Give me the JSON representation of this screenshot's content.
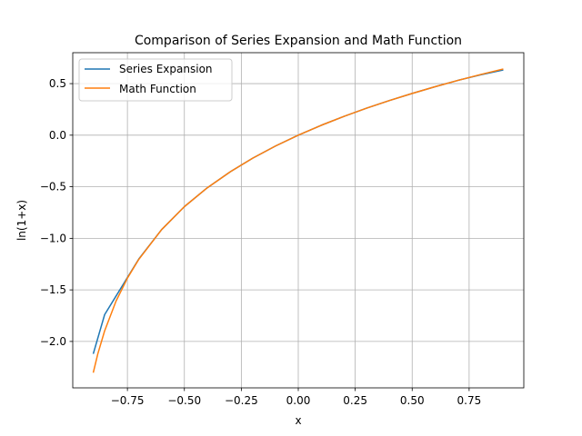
{
  "chart_data": {
    "type": "line",
    "title": "Comparison of Series Expansion and Math Function",
    "xlabel": "x",
    "ylabel": "ln(1+x)",
    "xlim": [
      -0.99,
      0.99
    ],
    "ylim": [
      -2.45,
      0.8
    ],
    "grid": true,
    "legend_position": "top-left",
    "x_ticks": [
      {
        "value": -0.75,
        "label": "−0.75"
      },
      {
        "value": -0.5,
        "label": "−0.50"
      },
      {
        "value": -0.25,
        "label": "−0.25"
      },
      {
        "value": 0.0,
        "label": "0.00"
      },
      {
        "value": 0.25,
        "label": "0.25"
      },
      {
        "value": 0.5,
        "label": "0.50"
      },
      {
        "value": 0.75,
        "label": "0.75"
      }
    ],
    "y_ticks": [
      {
        "value": 0.5,
        "label": "0.5"
      },
      {
        "value": 0.0,
        "label": "0.0"
      },
      {
        "value": -0.5,
        "label": "−0.5"
      },
      {
        "value": -1.0,
        "label": "−1.0"
      },
      {
        "value": -1.5,
        "label": "−1.5"
      },
      {
        "value": -2.0,
        "label": "−2.0"
      }
    ],
    "series": [
      {
        "name": "Series Expansion",
        "color": "#1f77b4",
        "x": [
          -0.9,
          -0.85,
          -0.8,
          -0.75,
          -0.7,
          -0.6,
          -0.5,
          -0.4,
          -0.3,
          -0.2,
          -0.1,
          0.0,
          0.1,
          0.2,
          0.3,
          0.4,
          0.5,
          0.6,
          0.7,
          0.8,
          0.9
        ],
        "y": [
          -2.12,
          -1.74,
          -1.56,
          -1.38,
          -1.2,
          -0.916,
          -0.693,
          -0.511,
          -0.357,
          -0.223,
          -0.105,
          0.0,
          0.0953,
          0.182,
          0.262,
          0.336,
          0.405,
          0.47,
          0.531,
          0.585,
          0.633
        ]
      },
      {
        "name": "Math Function",
        "color": "#ff7f0e",
        "x": [
          -0.9,
          -0.88,
          -0.85,
          -0.8,
          -0.75,
          -0.7,
          -0.6,
          -0.5,
          -0.4,
          -0.3,
          -0.2,
          -0.1,
          0.0,
          0.1,
          0.2,
          0.3,
          0.4,
          0.5,
          0.6,
          0.7,
          0.8,
          0.9
        ],
        "y": [
          -2.303,
          -2.12,
          -1.897,
          -1.609,
          -1.386,
          -1.204,
          -0.916,
          -0.693,
          -0.511,
          -0.357,
          -0.223,
          -0.105,
          0.0,
          0.0953,
          0.182,
          0.262,
          0.336,
          0.405,
          0.47,
          0.531,
          0.588,
          0.642
        ]
      }
    ]
  }
}
